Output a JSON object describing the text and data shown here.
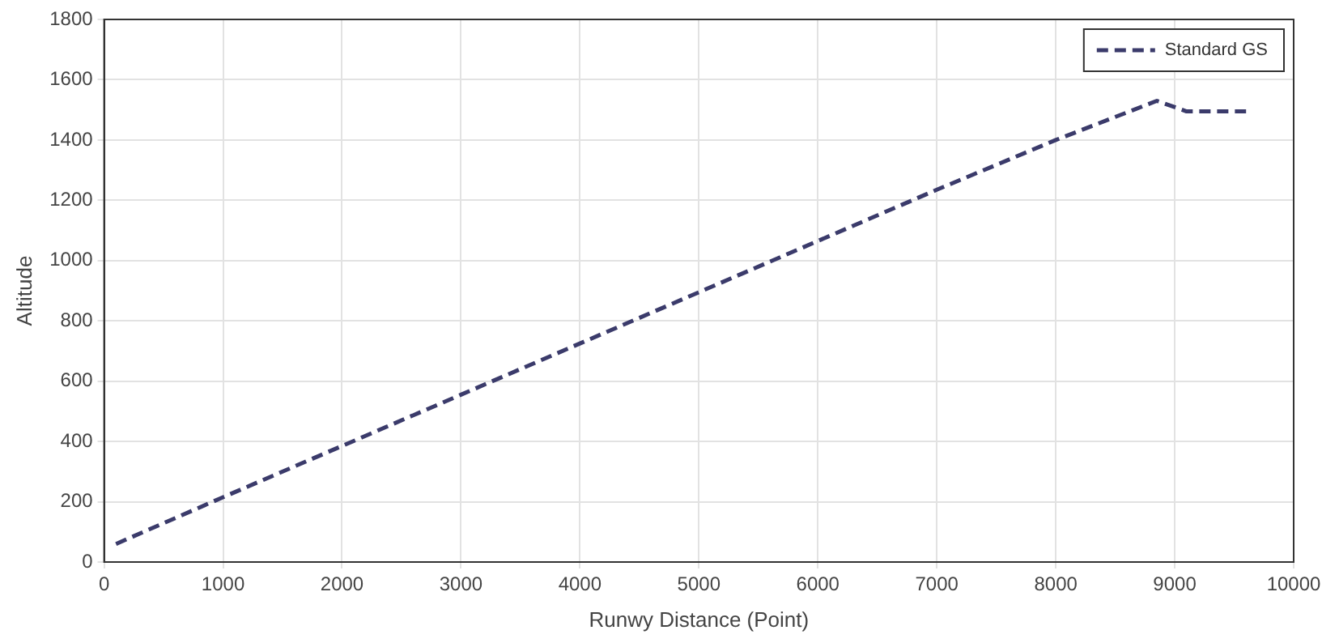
{
  "chart_data": {
    "type": "line",
    "xlabel": "Runwy Distance (Point)",
    "ylabel": "Altitude",
    "x": [
      100,
      1000,
      2000,
      3000,
      4000,
      5000,
      6000,
      7000,
      8000,
      8850,
      9100,
      9600
    ],
    "series": [
      {
        "name": "Standard GS",
        "color": "#3b3b6b",
        "values": [
          60,
          215,
          385,
          555,
          725,
          895,
          1065,
          1235,
          1400,
          1530,
          1495,
          1495
        ]
      }
    ],
    "xlim": [
      0,
      10000
    ],
    "xticks": [
      0,
      1000,
      2000,
      3000,
      4000,
      5000,
      6000,
      7000,
      8000,
      9000,
      10000
    ],
    "ylim": [
      0,
      1800
    ],
    "yticks": [
      0,
      200,
      400,
      600,
      800,
      1000,
      1200,
      1400,
      1600,
      1800
    ],
    "grid": true,
    "legend": "top right",
    "line_style": "dashed",
    "marker": "none"
  }
}
